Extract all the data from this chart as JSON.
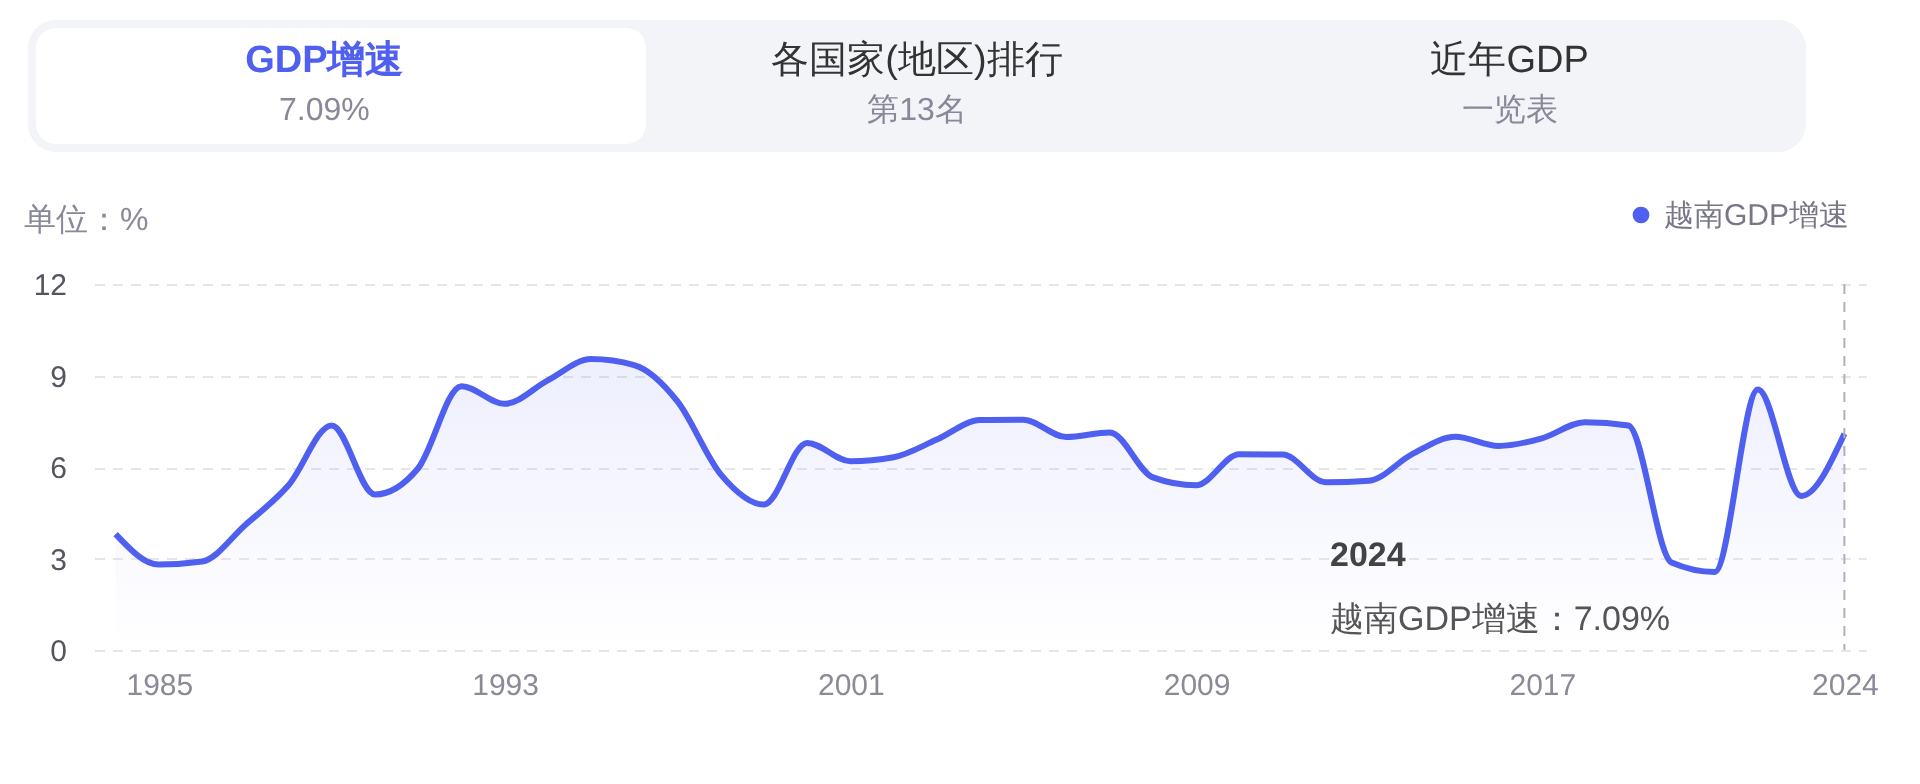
{
  "chart_data": {
    "type": "area",
    "ylabel": "单位：%",
    "annotations": [
      "GDP增速",
      "7.09%",
      "各国家(地区)排行",
      "第13名",
      "近年GDP",
      "一览表",
      "2024",
      "越南GDP增速：7.09%"
    ],
    "x": [
      1984,
      1985,
      1986,
      1987,
      1988,
      1989,
      1990,
      1991,
      1992,
      1993,
      1994,
      1995,
      1996,
      1997,
      1998,
      1999,
      2000,
      2001,
      2002,
      2003,
      2004,
      2005,
      2006,
      2007,
      2008,
      2009,
      2010,
      2011,
      2012,
      2013,
      2014,
      2015,
      2016,
      2017,
      2018,
      2019,
      2020,
      2021,
      2022,
      2023,
      2024
    ],
    "series": [
      {
        "name": "越南GDP增速",
        "color": "#4f5ff0",
        "values": [
          3.8,
          2.8,
          2.9,
          4.1,
          5.4,
          7.36,
          5.1,
          5.96,
          8.65,
          8.07,
          8.84,
          9.54,
          9.34,
          8.15,
          5.76,
          4.77,
          6.79,
          6.19,
          6.32,
          6.9,
          7.54,
          7.55,
          6.98,
          7.13,
          5.66,
          5.4,
          6.42,
          6.41,
          5.5,
          5.55,
          6.42,
          6.99,
          6.69,
          6.94,
          7.47,
          7.36,
          2.87,
          2.56,
          8.54,
          5.05,
          7.09
        ]
      }
    ],
    "xlim": [
      1983.5,
      2024.5
    ],
    "xticks": [
      1985,
      1993,
      2001,
      2009,
      2017,
      2024
    ],
    "ylim": [
      0,
      12
    ],
    "yticks": [
      0,
      3,
      6,
      9,
      12
    ],
    "grid": "y",
    "legend": "top right",
    "marker": "none",
    "line_style": "solid",
    "ref_lines": [
      {
        "axis": "x",
        "value": 2024,
        "color": "#b0b0b8",
        "line_style": "dashed"
      }
    ]
  }
}
